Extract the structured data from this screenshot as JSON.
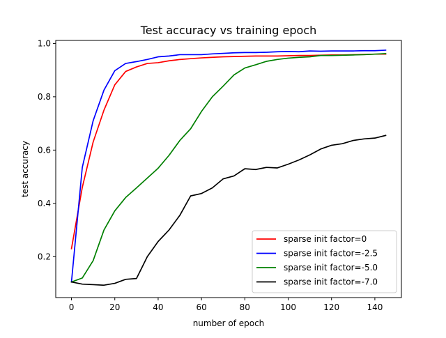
{
  "chart_data": {
    "type": "line",
    "title": "Test accuracy vs training epoch",
    "xlabel": "number of epoch",
    "ylabel": "test accuracy",
    "xlim": [
      -7.25,
      152.25
    ],
    "ylim": [
      0.0465,
      1.0115
    ],
    "xticks": [
      0,
      20,
      40,
      60,
      80,
      100,
      120,
      140
    ],
    "yticks": [
      0.2,
      0.4,
      0.6,
      0.8,
      1.0
    ],
    "ytick_labels": [
      "0.2",
      "0.4",
      "0.6",
      "0.8",
      "1.0"
    ],
    "grid": false,
    "legend_position": "lower-right",
    "x": [
      0,
      5,
      10,
      15,
      20,
      25,
      30,
      35,
      40,
      45,
      50,
      55,
      60,
      65,
      70,
      75,
      80,
      85,
      90,
      95,
      100,
      105,
      110,
      115,
      120,
      125,
      130,
      135,
      140,
      145
    ],
    "series": [
      {
        "name": "sparse init factor=0",
        "color": "#ff0000",
        "values": [
          0.23,
          0.46,
          0.63,
          0.75,
          0.845,
          0.895,
          0.912,
          0.925,
          0.928,
          0.935,
          0.94,
          0.943,
          0.946,
          0.948,
          0.95,
          0.951,
          0.952,
          0.953,
          0.953,
          0.953,
          0.954,
          0.955,
          0.955,
          0.956,
          0.957,
          0.957,
          0.958,
          0.959,
          0.96,
          0.96
        ]
      },
      {
        "name": "sparse init factor=-2.5",
        "color": "#0000ff",
        "values": [
          0.105,
          0.535,
          0.71,
          0.825,
          0.898,
          0.925,
          0.932,
          0.94,
          0.95,
          0.953,
          0.958,
          0.958,
          0.958,
          0.961,
          0.963,
          0.965,
          0.966,
          0.966,
          0.967,
          0.969,
          0.97,
          0.969,
          0.972,
          0.971,
          0.972,
          0.972,
          0.972,
          0.973,
          0.973,
          0.975
        ]
      },
      {
        "name": "sparse init factor=-5.0",
        "color": "#008000",
        "values": [
          0.105,
          0.12,
          0.185,
          0.3,
          0.372,
          0.422,
          0.458,
          0.495,
          0.532,
          0.58,
          0.636,
          0.68,
          0.745,
          0.8,
          0.84,
          0.882,
          0.908,
          0.92,
          0.933,
          0.94,
          0.945,
          0.948,
          0.95,
          0.955,
          0.955,
          0.956,
          0.957,
          0.958,
          0.96,
          0.962
        ]
      },
      {
        "name": "sparse init factor=-7.0",
        "color": "#000000",
        "values": [
          0.105,
          0.097,
          0.095,
          0.093,
          0.1,
          0.115,
          0.118,
          0.2,
          0.257,
          0.3,
          0.355,
          0.428,
          0.437,
          0.458,
          0.492,
          0.503,
          0.53,
          0.527,
          0.535,
          0.533,
          0.547,
          0.563,
          0.582,
          0.604,
          0.618,
          0.624,
          0.636,
          0.642,
          0.645,
          0.655
        ]
      }
    ]
  }
}
